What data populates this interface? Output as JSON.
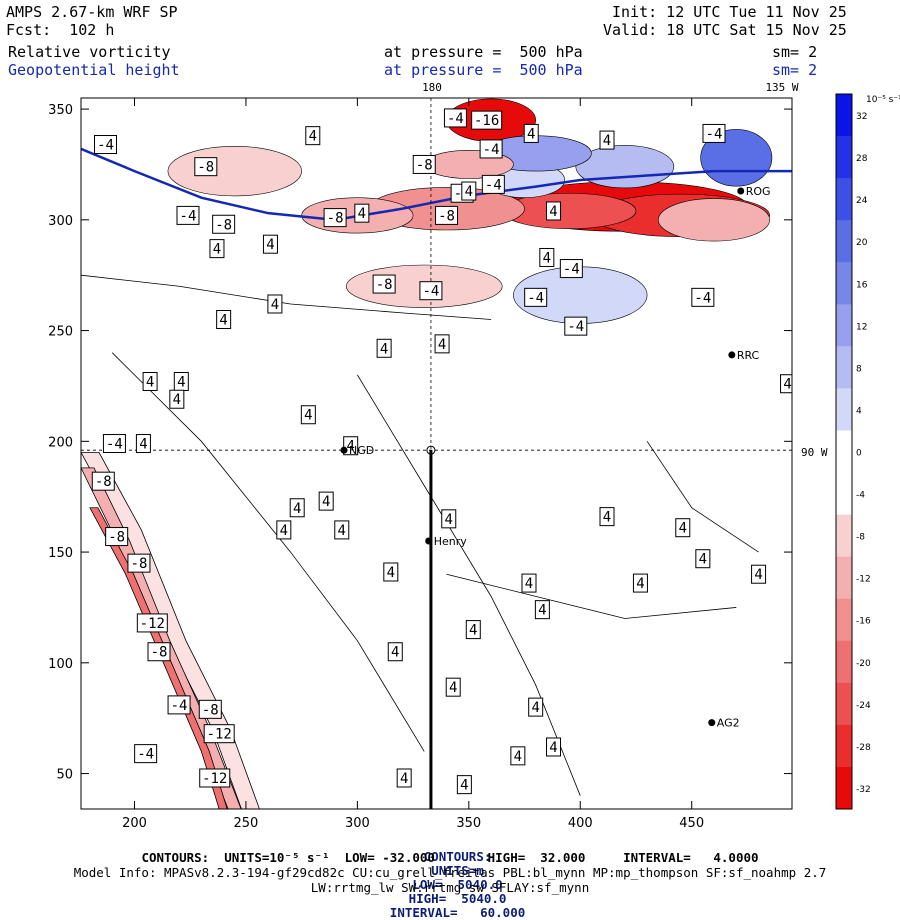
{
  "header": {
    "left_line1": "AMPS 2.67-km WRF SP",
    "left_line2": "Fcst:  102 h",
    "right_line1": "Init: 12 UTC Tue 11 Nov 25",
    "right_line2": "Valid: 18 UTC Sat 15 Nov 25",
    "field1_name": "Relative vorticity",
    "field1_level": "at pressure =  500 hPa",
    "field1_sm": "sm= 2",
    "field2_name": "Geopotential height",
    "field2_level": "at pressure =  500 hPa",
    "field2_sm": "sm= 2"
  },
  "map_labels": {
    "top_meridian": "180",
    "top_right_meridian": "135 W",
    "right_meridian": "90 W"
  },
  "stations": [
    {
      "name": "Henry",
      "x": 332,
      "y": 155
    },
    {
      "name": "RRC",
      "x": 468,
      "y": 239
    },
    {
      "name": "AG2",
      "x": 459,
      "y": 73
    },
    {
      "name": "ROG",
      "x": 472,
      "y": 313
    },
    {
      "name": "NGD",
      "x": 294,
      "y": 196
    }
  ],
  "colorbar": {
    "unit_label": "10⁻⁵ s⁻¹",
    "ticks": [
      "32",
      "28",
      "24",
      "20",
      "16",
      "12",
      "8",
      "4",
      "0",
      "-4",
      "-8",
      "-12",
      "-16",
      "-20",
      "-24",
      "-28",
      "-32"
    ],
    "colors": [
      "#0a14e6",
      "#2332e6",
      "#3c50e6",
      "#5a6ee6",
      "#7886ea",
      "#96a0ee",
      "#b4bcf2",
      "#d2d8f8",
      "#ffffff",
      "#ffffff",
      "#f8d0d0",
      "#f4b0b0",
      "#f09090",
      "#ee7070",
      "#ec5050",
      "#ea2e2e",
      "#e60a0a"
    ]
  },
  "chart_data": {
    "type": "heatmap",
    "title": "Relative vorticity / Geopotential height at 500 hPa",
    "xlim": [
      176,
      495
    ],
    "ylim": [
      34,
      355
    ],
    "xticks": [
      200,
      250,
      300,
      350,
      400,
      450
    ],
    "yticks": [
      50,
      100,
      150,
      200,
      250,
      300,
      350
    ],
    "crosshair": {
      "x": 333,
      "y": 196
    },
    "section_line": {
      "x": 333,
      "y_from": 34,
      "y_to": 196
    },
    "height_contour_5040": [
      [
        176,
        332
      ],
      [
        200,
        322
      ],
      [
        230,
        310
      ],
      [
        260,
        303
      ],
      [
        290,
        300
      ],
      [
        320,
        305
      ],
      [
        350,
        311
      ],
      [
        380,
        315
      ],
      [
        400,
        318
      ],
      [
        430,
        320
      ],
      [
        460,
        322
      ],
      [
        495,
        322
      ]
    ],
    "bands": [
      {
        "value": -4,
        "points": [
          [
            176,
            195
          ],
          [
            195,
            160
          ],
          [
            215,
            110
          ],
          [
            235,
            70
          ],
          [
            248,
            34
          ]
        ]
      },
      {
        "value": -8,
        "points": [
          [
            176,
            188
          ],
          [
            192,
            155
          ],
          [
            210,
            110
          ],
          [
            228,
            70
          ],
          [
            242,
            34
          ]
        ]
      },
      {
        "value": -12,
        "points": [
          [
            180,
            170
          ],
          [
            196,
            140
          ],
          [
            213,
            100
          ],
          [
            230,
            60
          ],
          [
            238,
            34
          ]
        ]
      }
    ],
    "vorticity_labels": [
      {
        "v": "-4",
        "x": 187,
        "y": 334
      },
      {
        "v": "-8",
        "x": 232,
        "y": 324
      },
      {
        "v": "4",
        "x": 280,
        "y": 338
      },
      {
        "v": "-4",
        "x": 224,
        "y": 302
      },
      {
        "v": "-8",
        "x": 240,
        "y": 298
      },
      {
        "v": "4",
        "x": 237,
        "y": 287
      },
      {
        "v": "4",
        "x": 261,
        "y": 289
      },
      {
        "v": "-8",
        "x": 290,
        "y": 301
      },
      {
        "v": "4",
        "x": 302,
        "y": 303
      },
      {
        "v": "4",
        "x": 388,
        "y": 304
      },
      {
        "v": "-8",
        "x": 340,
        "y": 302
      },
      {
        "v": "-4",
        "x": 347,
        "y": 312
      },
      {
        "v": "4",
        "x": 350,
        "y": 313
      },
      {
        "v": "-4",
        "x": 361,
        "y": 316
      },
      {
        "v": "-4",
        "x": 344,
        "y": 346
      },
      {
        "v": "-16",
        "x": 358,
        "y": 345
      },
      {
        "v": "4",
        "x": 378,
        "y": 339
      },
      {
        "v": "-8",
        "x": 330,
        "y": 325
      },
      {
        "v": "-4",
        "x": 360,
        "y": 332
      },
      {
        "v": "4",
        "x": 412,
        "y": 336
      },
      {
        "v": "-4",
        "x": 460,
        "y": 339
      },
      {
        "v": "4",
        "x": 385,
        "y": 283
      },
      {
        "v": "-8",
        "x": 312,
        "y": 271
      },
      {
        "v": "-4",
        "x": 333,
        "y": 268
      },
      {
        "v": "-4",
        "x": 396,
        "y": 278
      },
      {
        "v": "-4",
        "x": 455,
        "y": 265
      },
      {
        "v": "4",
        "x": 240,
        "y": 255
      },
      {
        "v": "4",
        "x": 263,
        "y": 262
      },
      {
        "v": "4",
        "x": 312,
        "y": 242
      },
      {
        "v": "-4",
        "x": 380,
        "y": 265
      },
      {
        "v": "-4",
        "x": 398,
        "y": 252
      },
      {
        "v": "4",
        "x": 493,
        "y": 226
      },
      {
        "v": "4",
        "x": 338,
        "y": 244
      },
      {
        "v": "4",
        "x": 207,
        "y": 227
      },
      {
        "v": "4",
        "x": 221,
        "y": 227
      },
      {
        "v": "4",
        "x": 219,
        "y": 219
      },
      {
        "v": "4",
        "x": 278,
        "y": 212
      },
      {
        "v": "-4",
        "x": 191,
        "y": 199
      },
      {
        "v": "4",
        "x": 204,
        "y": 199
      },
      {
        "v": "4",
        "x": 297,
        "y": 198
      },
      {
        "v": "-8",
        "x": 186,
        "y": 182
      },
      {
        "v": "4",
        "x": 273,
        "y": 170
      },
      {
        "v": "4",
        "x": 286,
        "y": 173
      },
      {
        "v": "4",
        "x": 267,
        "y": 160
      },
      {
        "v": "4",
        "x": 293,
        "y": 160
      },
      {
        "v": "4",
        "x": 341,
        "y": 165
      },
      {
        "v": "4",
        "x": 412,
        "y": 166
      },
      {
        "v": "4",
        "x": 446,
        "y": 161
      },
      {
        "v": "-8",
        "x": 192,
        "y": 157
      },
      {
        "v": "4",
        "x": 455,
        "y": 147
      },
      {
        "v": "4",
        "x": 480,
        "y": 140
      },
      {
        "v": "4",
        "x": 377,
        "y": 136
      },
      {
        "v": "-8",
        "x": 202,
        "y": 145
      },
      {
        "v": "4",
        "x": 315,
        "y": 141
      },
      {
        "v": "4",
        "x": 427,
        "y": 136
      },
      {
        "v": "4",
        "x": 383,
        "y": 124
      },
      {
        "v": "-12",
        "x": 208,
        "y": 118
      },
      {
        "v": "4",
        "x": 352,
        "y": 115
      },
      {
        "v": "-8",
        "x": 211,
        "y": 105
      },
      {
        "v": "4",
        "x": 317,
        "y": 105
      },
      {
        "v": "4",
        "x": 343,
        "y": 89
      },
      {
        "v": "-4",
        "x": 220,
        "y": 81
      },
      {
        "v": "-8",
        "x": 234,
        "y": 79
      },
      {
        "v": "4",
        "x": 380,
        "y": 80
      },
      {
        "v": "-12",
        "x": 238,
        "y": 68
      },
      {
        "v": "-4",
        "x": 205,
        "y": 59
      },
      {
        "v": "4",
        "x": 388,
        "y": 62
      },
      {
        "v": "4",
        "x": 372,
        "y": 58
      },
      {
        "v": "-12",
        "x": 236,
        "y": 48
      },
      {
        "v": "4",
        "x": 321,
        "y": 48
      },
      {
        "v": "4",
        "x": 348,
        "y": 45
      }
    ]
  },
  "footer": {
    "line1_label": "CONTOURS:",
    "line1_units": "UNITS=m",
    "line1_low": "LOW=  5040.0",
    "line1_high": "HIGH=  5040.0",
    "line1_interval": "INTERVAL=   60.000",
    "line2": "CONTOURS:  UNITS=10⁻⁵ s⁻¹  LOW= -32.000       HIGH=  32.000     INTERVAL=   4.0000",
    "line3": "Model Info: MPASv8.2.3-194-gf29cd82c CU:cu_grell_freitas PBL:bl_mynn MP:mp_thompson SF:sf_noahmp 2.7",
    "line4": "LW:rrtmg_lw SW:rrtmg_sw SFLAY:sf_mynn"
  }
}
